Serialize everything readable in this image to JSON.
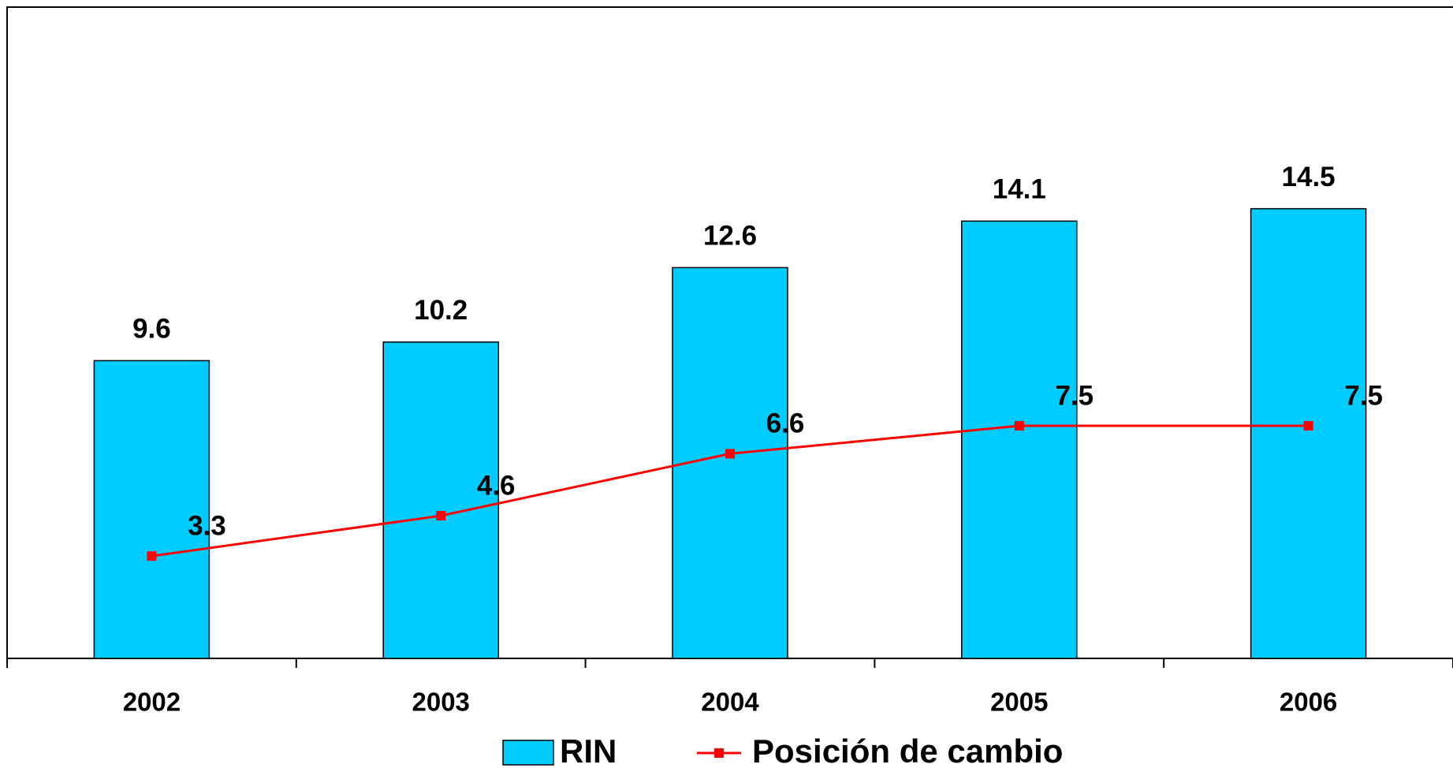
{
  "chart_data": {
    "type": "bar_line",
    "categories": [
      "2002",
      "2003",
      "2004",
      "2005",
      "2006"
    ],
    "series": [
      {
        "name": "RIN",
        "type": "bar",
        "color": "#00ccff",
        "values": [
          9.6,
          10.2,
          12.6,
          14.1,
          14.5
        ]
      },
      {
        "name": "Posición de cambio",
        "type": "line",
        "color": "#ff0000",
        "values": [
          3.3,
          4.6,
          6.6,
          7.5,
          7.5
        ]
      }
    ],
    "ylim": [
      0,
      21
    ]
  }
}
